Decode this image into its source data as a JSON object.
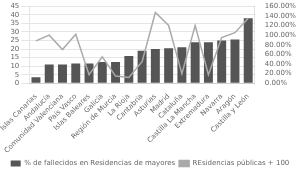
{
  "chart_data": {
    "type": "bar",
    "categories": [
      "Islas Canarias",
      "Andalucía",
      "Comunidad Valenciana",
      "País Vasco",
      "Islas Baleares",
      "Galicia",
      "Región de Murcia",
      "La Rioja",
      "Cantabria",
      "Asturias",
      "Madrid",
      "Cataluña",
      "Castilla La Mancha",
      "Extremadura",
      "Navarra",
      "Aragón",
      "Castilla y León"
    ],
    "series": [
      {
        "name": "% de fallecidos en Residencias de mayores",
        "type": "bar",
        "color": "#555555",
        "values": [
          3.5,
          11,
          11,
          11.5,
          11.5,
          12.5,
          12.5,
          16,
          19,
          20,
          20.5,
          21,
          24,
          24,
          25,
          25.5,
          38
        ]
      },
      {
        "name": "REsidencias públicas + 100",
        "type": "line",
        "color": "#aaaaaa",
        "axis": "y2",
        "values": [
          88,
          100,
          70,
          102,
          18,
          55,
          15,
          12,
          45,
          147,
          120,
          20,
          120,
          18,
          95,
          105,
          135
        ]
      }
    ],
    "ylim": [
      0,
      45
    ],
    "yticks": [
      0,
      5,
      10,
      15,
      20,
      25,
      30,
      35,
      40,
      45
    ],
    "y2lim": [
      0,
      160
    ],
    "y2ticks": [
      {
        "value": 0,
        "label": "0.00%"
      },
      {
        "value": 20,
        "label": "20.00%"
      },
      {
        "value": 40,
        "label": "40.00%"
      },
      {
        "value": 60,
        "label": "60.00%"
      },
      {
        "value": 80,
        "label": "80.00%"
      },
      {
        "value": 100,
        "label": "100.00%"
      },
      {
        "value": 120,
        "label": "120.00%"
      },
      {
        "value": 140,
        "label": "140.00%"
      },
      {
        "value": 160,
        "label": "160.00%"
      }
    ],
    "grid": true,
    "legend": "bottom"
  }
}
